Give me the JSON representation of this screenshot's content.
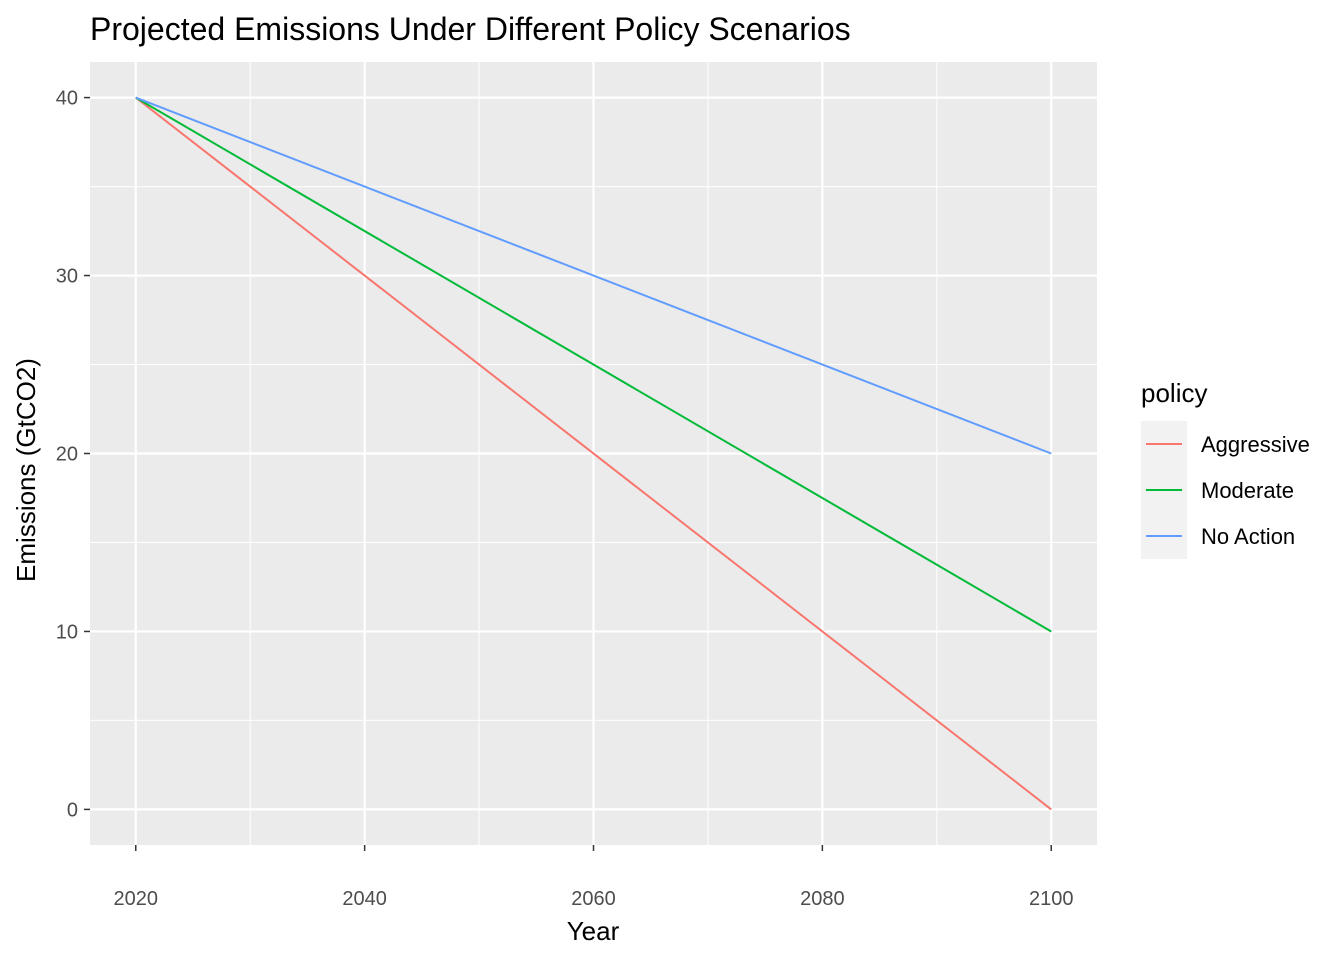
{
  "chart_data": {
    "type": "line",
    "title": "Projected Emissions Under Different Policy Scenarios",
    "xlabel": "Year",
    "ylabel": "Emissions (GtCO2)",
    "xlim": [
      2016,
      2104
    ],
    "ylim": [
      -2,
      42
    ],
    "x_ticks": [
      2020,
      2040,
      2060,
      2080,
      2100
    ],
    "x_minor": [
      2030,
      2050,
      2070,
      2090
    ],
    "y_ticks": [
      0,
      10,
      20,
      30,
      40
    ],
    "y_minor": [
      5,
      15,
      25,
      35
    ],
    "grid": true,
    "legend": {
      "title": "policy",
      "placement": "right"
    },
    "x": [
      2020,
      2100
    ],
    "series": [
      {
        "name": "Aggressive",
        "color": "#F8766D",
        "values": [
          40,
          0
        ]
      },
      {
        "name": "Moderate",
        "color": "#00BA38",
        "values": [
          40,
          10
        ]
      },
      {
        "name": "No Action",
        "color": "#619CFF",
        "values": [
          40,
          20
        ]
      }
    ]
  }
}
